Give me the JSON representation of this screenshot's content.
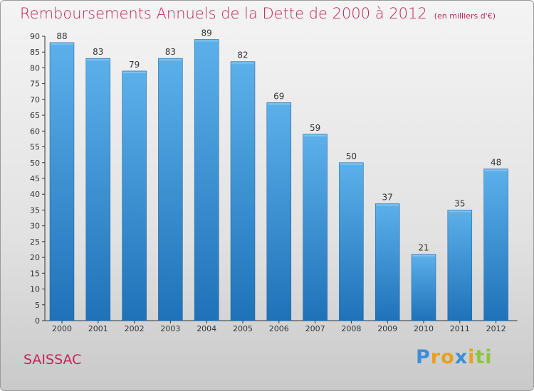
{
  "title": "Remboursements Annuels de la Dette de 2000 à 2012",
  "unit_note": "(en milliers d'€)",
  "city": "SAISSAC",
  "logo": {
    "letters": [
      {
        "ch": "P",
        "color": "#3a8fd6"
      },
      {
        "ch": "r",
        "color": "#e8a11e"
      },
      {
        "ch": "o",
        "color": "#e8a11e"
      },
      {
        "ch": "x",
        "color": "#3a8fd6"
      },
      {
        "ch": "i",
        "color": "#e8a11e"
      },
      {
        "ch": "t",
        "color": "#8dc63f"
      },
      {
        "ch": "i",
        "color": "#8dc63f"
      }
    ]
  },
  "colors": {
    "bar_top": "#5cb0ea",
    "bar_bottom": "#1f72b8",
    "accent": "#c4265a",
    "axis": "#333333"
  },
  "chart_data": {
    "type": "bar",
    "categories": [
      "2000",
      "2001",
      "2002",
      "2003",
      "2004",
      "2005",
      "2006",
      "2007",
      "2008",
      "2009",
      "2010",
      "2011",
      "2012"
    ],
    "values": [
      88,
      83,
      79,
      83,
      89,
      82,
      69,
      59,
      50,
      37,
      21,
      35,
      48
    ],
    "ylim": [
      0,
      90
    ],
    "yticks": [
      0,
      5,
      10,
      15,
      20,
      25,
      30,
      35,
      40,
      45,
      50,
      55,
      60,
      65,
      70,
      75,
      80,
      85,
      90
    ],
    "grid": false,
    "data_labels": true
  }
}
